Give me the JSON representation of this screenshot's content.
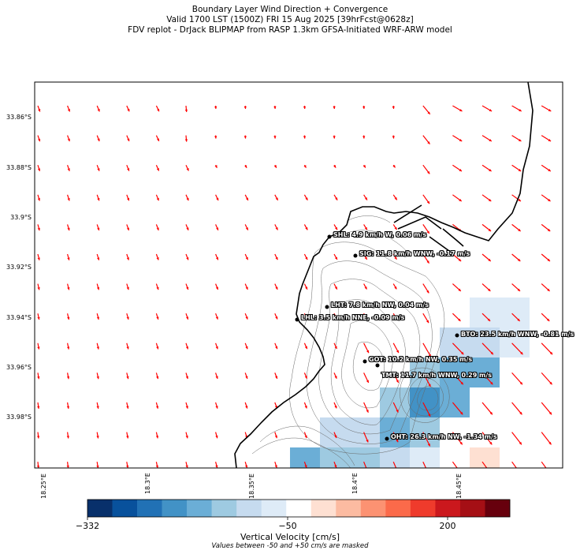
{
  "title": {
    "line1": "Boundary Layer Wind Direction + Convergence",
    "line2": "Valid 1700 LST (1500Z) FRI 15 Aug 2025 [39hrFcst@0628z]",
    "line3": "FDV replot - DrJack BLIPMAP from RASP 1.3km GFSA-Initiated WRF-ARW model"
  },
  "lat_labels": [
    "33.86°S",
    "33.88°S",
    "33.9°S",
    "33.92°S",
    "33.94°S",
    "33.96°S",
    "33.98°S"
  ],
  "lon_labels": [
    "18.25°E",
    "18.3°E",
    "18.35°E",
    "18.4°E",
    "18.45°E"
  ],
  "stations": [
    {
      "id": "SHL",
      "label": "SHL: 4.9 km/h W, 0.06 m/s"
    },
    {
      "id": "SIG",
      "label": "SIG: 11.8 km/h WNW, -0.17 m/s"
    },
    {
      "id": "LHT",
      "label": "LHT: 7.8 km/h NW, 0.04 m/s"
    },
    {
      "id": "LHL",
      "label": "LHL: 3.5 km/h NNE, -0.09 m/s"
    },
    {
      "id": "BTO",
      "label": "BTO: 23.5 km/h WNW, -0.81 m/s"
    },
    {
      "id": "GOT",
      "label": "GOT: 10.2 km/h NW, 0.35 m/s"
    },
    {
      "id": "TMT",
      "label": "TMT: 11.7 km/h WNW, 0.29 m/s"
    },
    {
      "id": "OHT",
      "label": "OHT: 26.3 km/h NW, -1.34 m/s"
    }
  ],
  "colorbar": {
    "ticks": [
      "−332",
      "−50",
      "200"
    ],
    "label": "Vertical Velocity [cm/s]",
    "note": "Values between -50 and +50 cm/s are masked",
    "colors": [
      "#08306b",
      "#08519c",
      "#2171b5",
      "#4292c6",
      "#6baed6",
      "#9ecae1",
      "#c6dbef",
      "#deebf7",
      "#ffffff",
      "#fee0d2",
      "#fcbba1",
      "#fc9272",
      "#fb6a4a",
      "#ef3b2c",
      "#cb181d",
      "#a50f15",
      "#67000d"
    ]
  },
  "colors": {
    "wind_arrow": "#ff0000",
    "coast": "#000000",
    "contour": "#555555"
  }
}
